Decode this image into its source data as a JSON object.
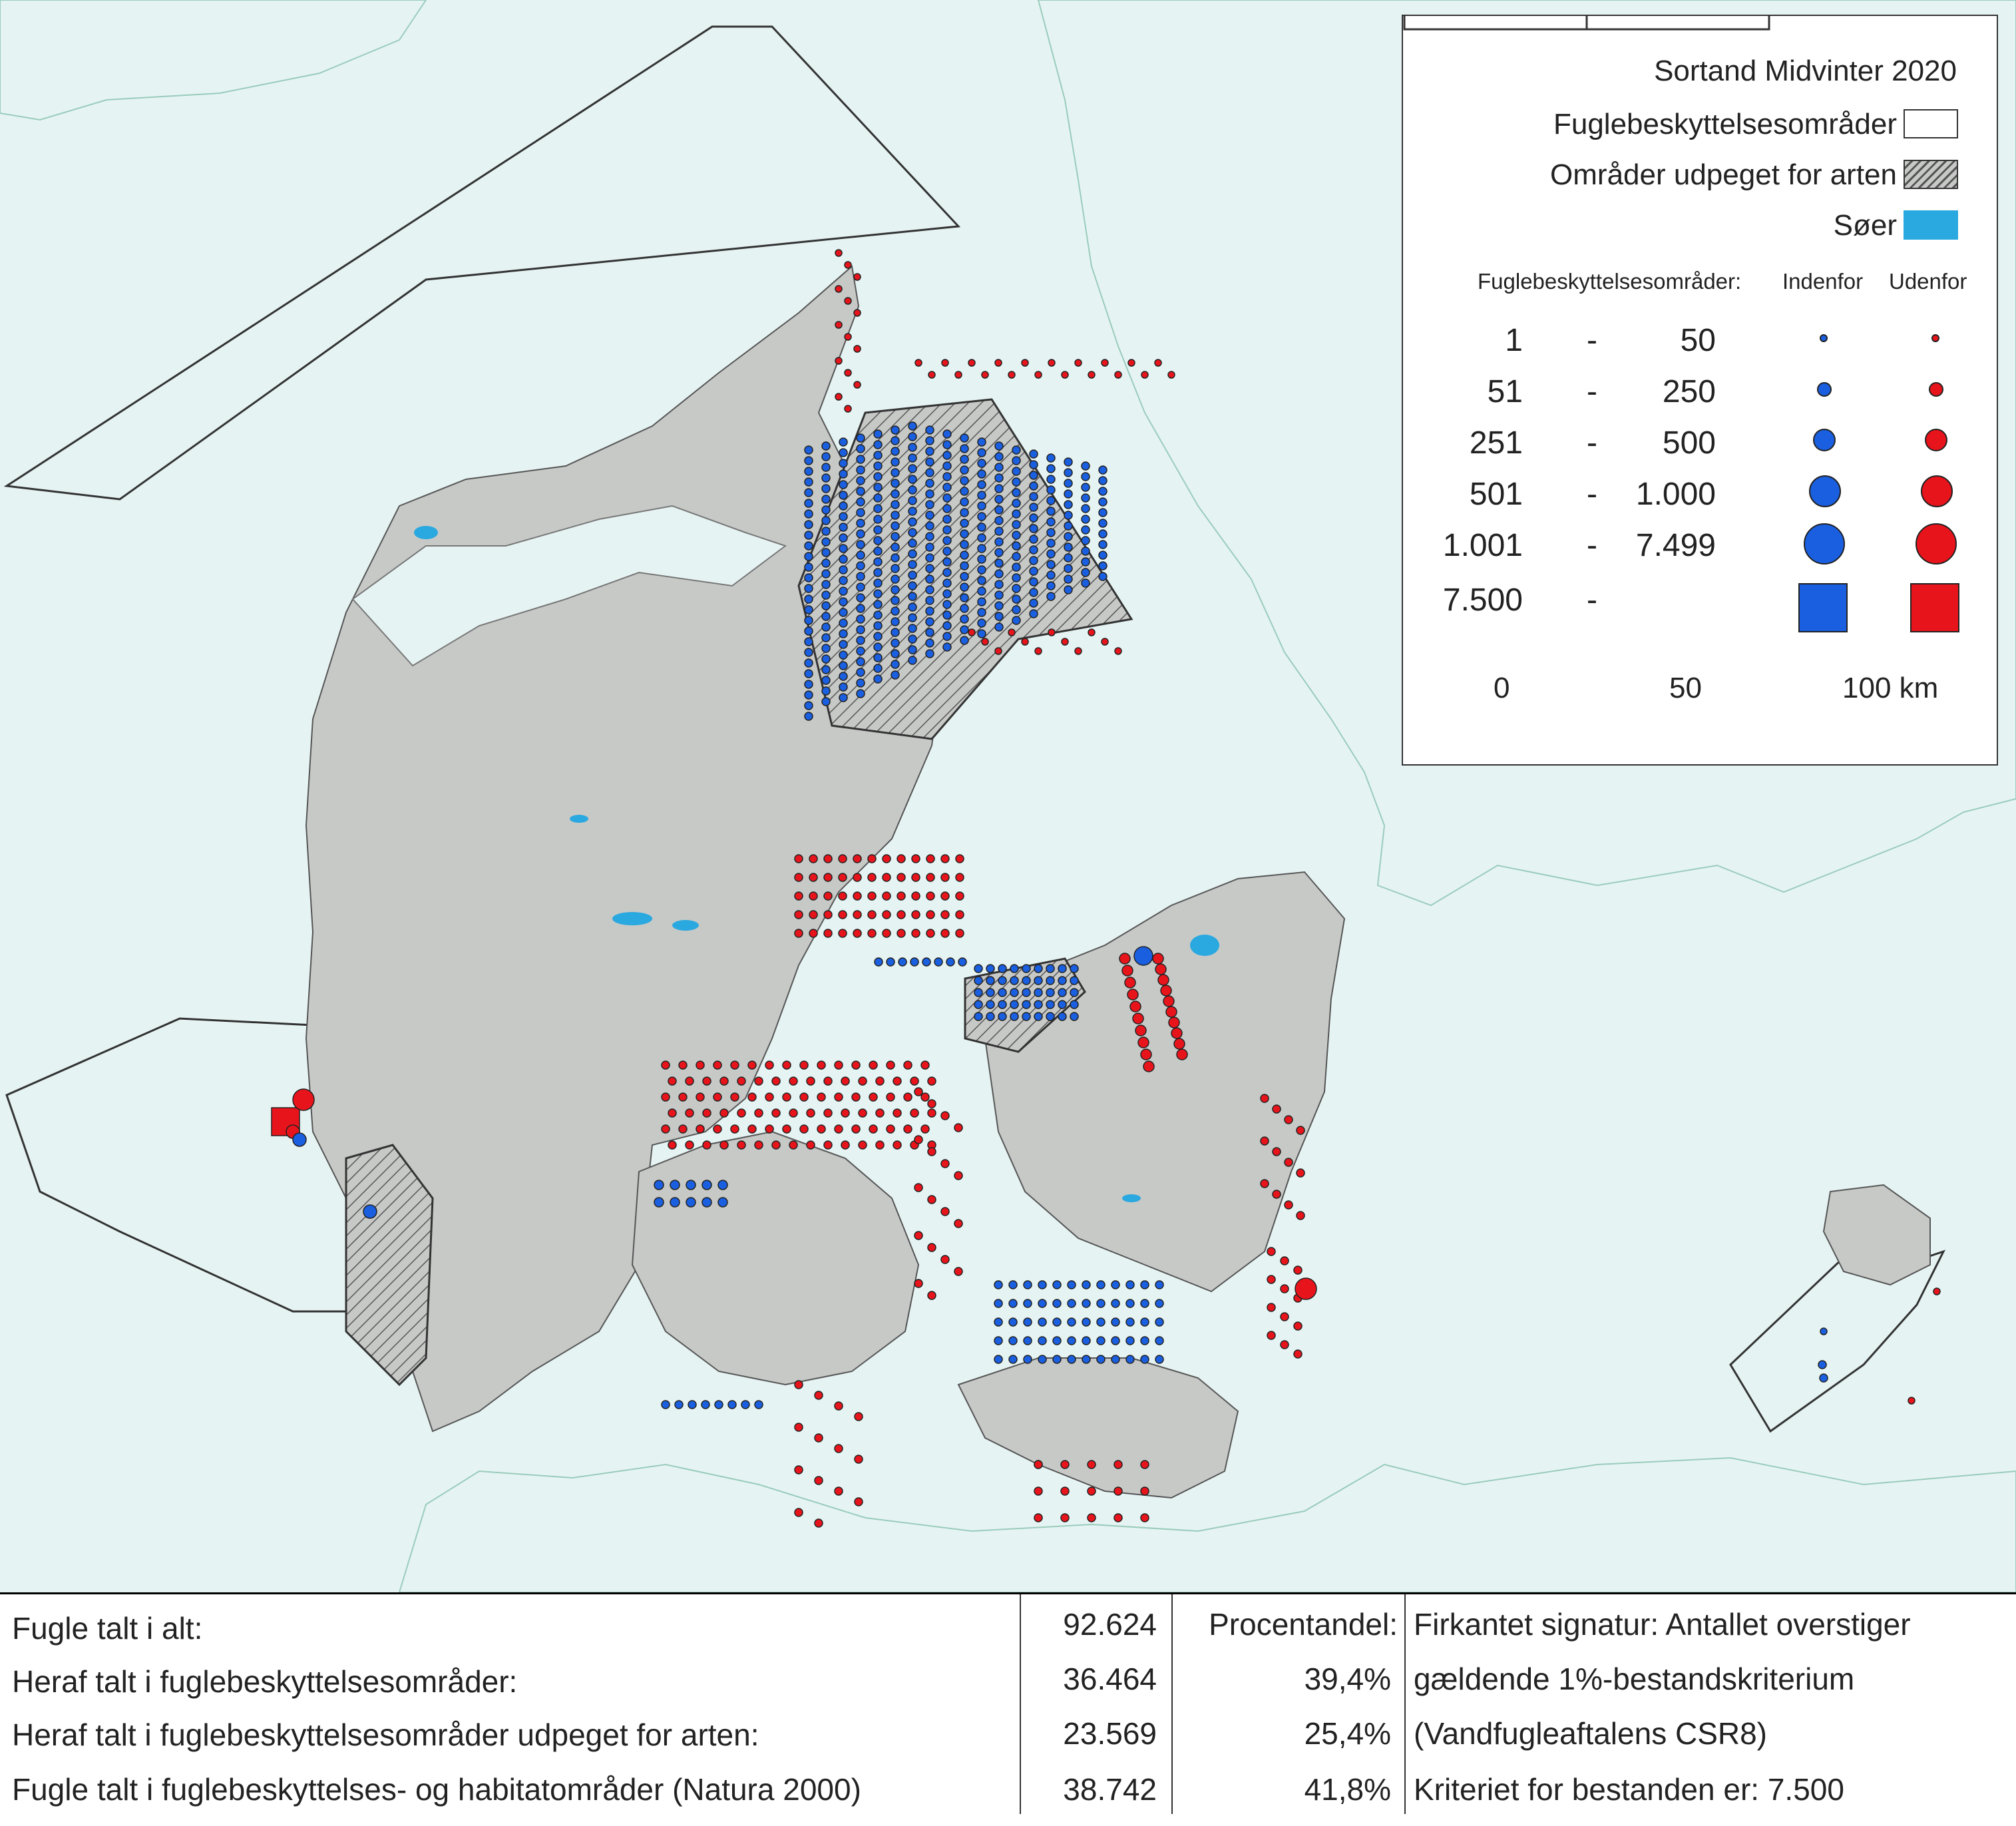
{
  "legend": {
    "title": "Sortand Midvinter 2020",
    "items": [
      {
        "label": "Fuglebeskyttelsesområder",
        "swatch": "empty"
      },
      {
        "label": "Områder udpeget for arten",
        "swatch": "hatched"
      },
      {
        "label": "Søer",
        "swatch": "lake"
      }
    ],
    "header": {
      "label": "Fuglebeskyttelsesområder:",
      "inside": "Indenfor",
      "outside": "Udenfor"
    },
    "classes": [
      {
        "from": "1",
        "dash": "-",
        "to": "50"
      },
      {
        "from": "51",
        "dash": "-",
        "to": "250"
      },
      {
        "from": "251",
        "dash": "-",
        "to": "500"
      },
      {
        "from": "501",
        "dash": "-",
        "to": "1.000"
      },
      {
        "from": "1.001",
        "dash": "-",
        "to": "7.499"
      },
      {
        "from": "7.500",
        "dash": "-",
        "to": ""
      }
    ],
    "scale": {
      "ticks": [
        "0",
        "50",
        "100 km"
      ]
    }
  },
  "stats": {
    "rows": [
      {
        "label": "Fugle talt i alt:",
        "value": "92.624",
        "pct": "Procentandel:",
        "note": "Firkantet signatur: Antallet overstiger"
      },
      {
        "label": "Heraf talt i fuglebeskyttelsesområder:",
        "value": "36.464",
        "pct": "39,4%",
        "note": "gældende 1%-bestandskriterium"
      },
      {
        "label": "Heraf talt i fuglebeskyttelsesområder udpeget for arten:",
        "value": "23.569",
        "pct": "25,4%",
        "note": "(Vandfugleaftalens CSR8)"
      },
      {
        "label": "Fugle talt i fuglebeskyttelses- og habitatområder (Natura 2000)",
        "value": "38.742",
        "pct": "41,8%",
        "note": "Kriteriet for bestanden er: 7.500"
      }
    ]
  },
  "colors": {
    "sea": "#e6f3f3",
    "land": "#c7c9c7",
    "lake": "#2aa8e0",
    "inside": "#1a5fe0",
    "outside": "#e8141c"
  }
}
